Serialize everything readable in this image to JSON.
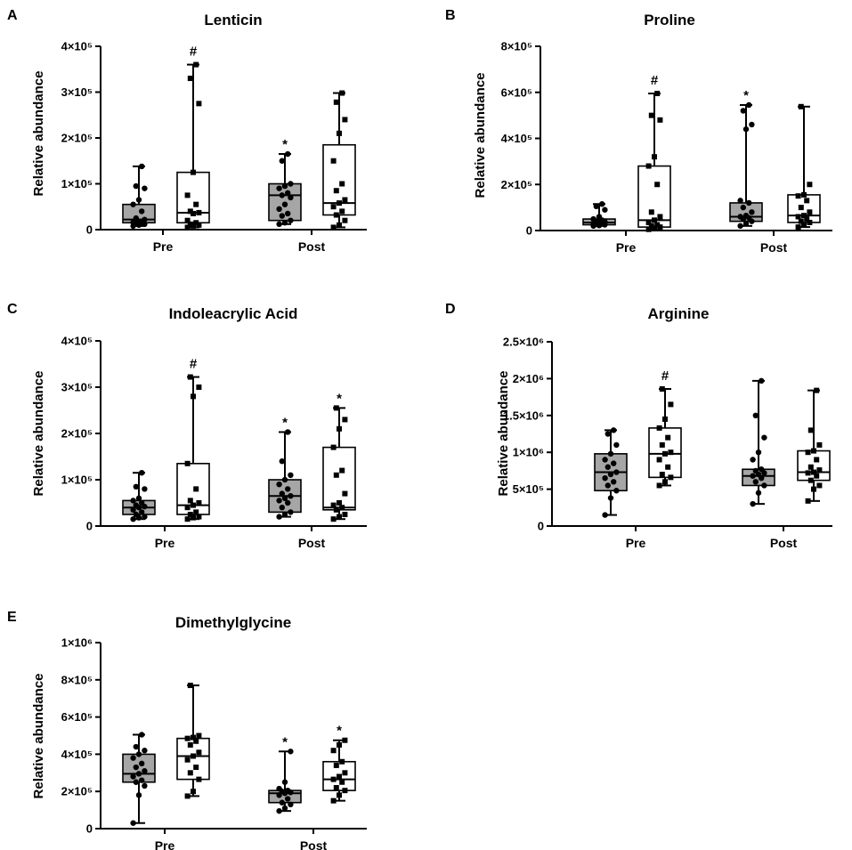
{
  "figure": {
    "panels": "A-E"
  },
  "chart_data": [
    {
      "type": "box",
      "panel": "A",
      "title": "Lenticin",
      "ylabel": "Relative abundance",
      "ylim": [
        0,
        400000
      ],
      "yticks": [
        {
          "value": 0,
          "label": "0"
        },
        {
          "value": 100000,
          "label": "1×10⁵"
        },
        {
          "value": 200000,
          "label": "2×10⁵"
        },
        {
          "value": 300000,
          "label": "3×10⁵"
        },
        {
          "value": 400000,
          "label": "4×10⁵"
        }
      ],
      "categories": [
        "Pre",
        "Post"
      ],
      "boxes": [
        {
          "group": "Pre",
          "fill": "#a6a6a6",
          "marker": "circle",
          "min": 8000,
          "q1": 15000,
          "median": 22000,
          "q3": 55000,
          "max": 138000,
          "points": [
            8000,
            10000,
            12000,
            14000,
            15000,
            16000,
            18000,
            22000,
            25000,
            40000,
            55000,
            65000,
            90000,
            95000,
            138000
          ],
          "annotation": ""
        },
        {
          "group": "Pre",
          "fill": "#ffffff",
          "marker": "square",
          "min": 5000,
          "q1": 15000,
          "median": 37000,
          "q3": 125000,
          "max": 360000,
          "points": [
            5000,
            8000,
            10000,
            12000,
            15000,
            20000,
            35000,
            37000,
            40000,
            55000,
            75000,
            125000,
            275000,
            330000,
            360000
          ],
          "annotation": "#"
        },
        {
          "group": "Post",
          "fill": "#a6a6a6",
          "marker": "circle",
          "min": 12000,
          "q1": 20000,
          "median": 75000,
          "q3": 100000,
          "max": 165000,
          "points": [
            12000,
            15000,
            20000,
            30000,
            35000,
            45000,
            55000,
            70000,
            75000,
            80000,
            90000,
            95000,
            100000,
            150000,
            165000
          ],
          "annotation": "*"
        },
        {
          "group": "Post",
          "fill": "#ffffff",
          "marker": "square",
          "min": 5000,
          "q1": 32000,
          "median": 58000,
          "q3": 185000,
          "max": 298000,
          "points": [
            5000,
            10000,
            20000,
            32000,
            40000,
            50000,
            58000,
            65000,
            85000,
            100000,
            150000,
            210000,
            240000,
            278000,
            298000
          ],
          "annotation": ""
        }
      ]
    },
    {
      "type": "box",
      "panel": "B",
      "title": "Proline",
      "ylabel": "Relative abundance",
      "ylim": [
        0,
        800000
      ],
      "yticks": [
        {
          "value": 0,
          "label": "0"
        },
        {
          "value": 200000,
          "label": "2×10⁵"
        },
        {
          "value": 400000,
          "label": "4×10⁵"
        },
        {
          "value": 600000,
          "label": "6×10⁵"
        },
        {
          "value": 800000,
          "label": "8×10⁵"
        }
      ],
      "categories": [
        "Pre",
        "Post"
      ],
      "boxes": [
        {
          "group": "Pre",
          "fill": "#a6a6a6",
          "marker": "circle",
          "min": 20000,
          "q1": 25000,
          "median": 35000,
          "q3": 50000,
          "max": 115000,
          "points": [
            20000,
            22000,
            25000,
            28000,
            30000,
            32000,
            35000,
            38000,
            40000,
            45000,
            50000,
            60000,
            90000,
            105000,
            115000
          ],
          "annotation": ""
        },
        {
          "group": "Pre",
          "fill": "#ffffff",
          "marker": "square",
          "min": 5000,
          "q1": 15000,
          "median": 45000,
          "q3": 280000,
          "max": 595000,
          "points": [
            5000,
            10000,
            15000,
            20000,
            25000,
            35000,
            45000,
            60000,
            80000,
            200000,
            280000,
            320000,
            480000,
            500000,
            595000
          ],
          "annotation": "#"
        },
        {
          "group": "Post",
          "fill": "#a6a6a6",
          "marker": "circle",
          "min": 20000,
          "q1": 40000,
          "median": 60000,
          "q3": 120000,
          "max": 545000,
          "points": [
            20000,
            30000,
            40000,
            50000,
            55000,
            60000,
            65000,
            80000,
            100000,
            120000,
            130000,
            440000,
            460000,
            520000,
            545000
          ],
          "annotation": "*"
        },
        {
          "group": "Post",
          "fill": "#ffffff",
          "marker": "square",
          "min": 15000,
          "q1": 35000,
          "median": 65000,
          "q3": 155000,
          "max": 538000,
          "points": [
            15000,
            25000,
            35000,
            40000,
            50000,
            60000,
            65000,
            80000,
            100000,
            130000,
            150000,
            155000,
            200000,
            538000
          ],
          "annotation": ""
        }
      ]
    },
    {
      "type": "box",
      "panel": "C",
      "title": "Indoleacrylic Acid",
      "ylabel": "Relative abundance",
      "ylim": [
        0,
        400000
      ],
      "yticks": [
        {
          "value": 0,
          "label": "0"
        },
        {
          "value": 100000,
          "label": "1×10⁵"
        },
        {
          "value": 200000,
          "label": "2×10⁵"
        },
        {
          "value": 300000,
          "label": "3×10⁵"
        },
        {
          "value": 400000,
          "label": "4×10⁵"
        }
      ],
      "categories": [
        "Pre",
        "Post"
      ],
      "boxes": [
        {
          "group": "Pre",
          "fill": "#a6a6a6",
          "marker": "circle",
          "min": 15000,
          "q1": 25000,
          "median": 40000,
          "q3": 55000,
          "max": 115000,
          "points": [
            15000,
            18000,
            20000,
            25000,
            30000,
            35000,
            40000,
            42000,
            45000,
            50000,
            55000,
            60000,
            80000,
            85000,
            115000
          ],
          "annotation": ""
        },
        {
          "group": "Pre",
          "fill": "#ffffff",
          "marker": "square",
          "min": 15000,
          "q1": 25000,
          "median": 45000,
          "q3": 135000,
          "max": 322000,
          "points": [
            15000,
            18000,
            20000,
            25000,
            30000,
            40000,
            45000,
            50000,
            55000,
            80000,
            135000,
            280000,
            300000,
            322000
          ],
          "annotation": "#"
        },
        {
          "group": "Post",
          "fill": "#a6a6a6",
          "marker": "circle",
          "min": 20000,
          "q1": 30000,
          "median": 65000,
          "q3": 100000,
          "max": 203000,
          "points": [
            20000,
            25000,
            30000,
            40000,
            50000,
            55000,
            60000,
            65000,
            70000,
            80000,
            90000,
            100000,
            110000,
            140000,
            203000
          ],
          "annotation": "*"
        },
        {
          "group": "Post",
          "fill": "#ffffff",
          "marker": "square",
          "min": 15000,
          "q1": 35000,
          "median": 40000,
          "q3": 170000,
          "max": 255000,
          "points": [
            15000,
            20000,
            25000,
            35000,
            40000,
            45000,
            50000,
            70000,
            110000,
            120000,
            170000,
            210000,
            230000,
            255000
          ],
          "annotation": "*"
        }
      ]
    },
    {
      "type": "box",
      "panel": "D",
      "title": "Arginine",
      "ylabel": "Relative abundance",
      "ylim": [
        0,
        2500000
      ],
      "yticks": [
        {
          "value": 0,
          "label": "0"
        },
        {
          "value": 500000,
          "label": "5×10⁵"
        },
        {
          "value": 1000000,
          "label": "1×10⁶"
        },
        {
          "value": 1500000,
          "label": "1.5×10⁶"
        },
        {
          "value": 2000000,
          "label": "2×10⁶"
        },
        {
          "value": 2500000,
          "label": "2.5×10⁶"
        }
      ],
      "categories": [
        "Pre",
        "Post"
      ],
      "boxes": [
        {
          "group": "Pre",
          "fill": "#a6a6a6",
          "marker": "circle",
          "min": 150000,
          "q1": 480000,
          "median": 730000,
          "q3": 980000,
          "max": 1300000,
          "points": [
            150000,
            380000,
            480000,
            550000,
            600000,
            650000,
            700000,
            730000,
            800000,
            850000,
            900000,
            980000,
            1100000,
            1250000,
            1300000
          ],
          "annotation": ""
        },
        {
          "group": "Pre",
          "fill": "#ffffff",
          "marker": "square",
          "min": 550000,
          "q1": 660000,
          "median": 980000,
          "q3": 1330000,
          "max": 1860000,
          "points": [
            550000,
            600000,
            660000,
            700000,
            800000,
            900000,
            980000,
            1000000,
            1100000,
            1200000,
            1330000,
            1450000,
            1650000,
            1860000
          ],
          "annotation": "#"
        },
        {
          "group": "Post",
          "fill": "#a6a6a6",
          "marker": "circle",
          "min": 300000,
          "q1": 550000,
          "median": 680000,
          "q3": 770000,
          "max": 1970000,
          "points": [
            300000,
            450000,
            550000,
            600000,
            650000,
            680000,
            700000,
            720000,
            750000,
            770000,
            900000,
            1000000,
            1200000,
            1500000,
            1970000
          ],
          "annotation": ""
        },
        {
          "group": "Post",
          "fill": "#ffffff",
          "marker": "square",
          "min": 340000,
          "q1": 620000,
          "median": 730000,
          "q3": 1020000,
          "max": 1840000,
          "points": [
            340000,
            500000,
            550000,
            620000,
            680000,
            720000,
            730000,
            760000,
            800000,
            900000,
            1000000,
            1020000,
            1100000,
            1300000,
            1840000
          ],
          "annotation": ""
        }
      ]
    },
    {
      "type": "box",
      "panel": "E",
      "title": "Dimethylglycine",
      "ylabel": "Relative abundance",
      "ylim": [
        0,
        1000000
      ],
      "yticks": [
        {
          "value": 0,
          "label": "0"
        },
        {
          "value": 200000,
          "label": "2×10⁵"
        },
        {
          "value": 400000,
          "label": "4×10⁵"
        },
        {
          "value": 600000,
          "label": "6×10⁵"
        },
        {
          "value": 800000,
          "label": "8×10⁵"
        },
        {
          "value": 1000000,
          "label": "1×10⁶"
        }
      ],
      "categories": [
        "Pre",
        "Post"
      ],
      "boxes": [
        {
          "group": "Pre",
          "fill": "#a6a6a6",
          "marker": "circle",
          "min": 30000,
          "q1": 250000,
          "median": 295000,
          "q3": 400000,
          "max": 505000,
          "points": [
            30000,
            180000,
            230000,
            250000,
            260000,
            280000,
            295000,
            310000,
            330000,
            350000,
            380000,
            400000,
            420000,
            440000,
            505000
          ],
          "annotation": ""
        },
        {
          "group": "Pre",
          "fill": "#ffffff",
          "marker": "square",
          "min": 175000,
          "q1": 265000,
          "median": 390000,
          "q3": 485000,
          "max": 770000,
          "points": [
            175000,
            200000,
            265000,
            300000,
            330000,
            370000,
            390000,
            410000,
            450000,
            470000,
            485000,
            490000,
            500000,
            770000
          ],
          "annotation": ""
        },
        {
          "group": "Post",
          "fill": "#a6a6a6",
          "marker": "circle",
          "min": 95000,
          "q1": 140000,
          "median": 190000,
          "q3": 205000,
          "max": 415000,
          "points": [
            95000,
            110000,
            130000,
            140000,
            160000,
            180000,
            190000,
            195000,
            200000,
            205000,
            215000,
            250000,
            415000
          ],
          "annotation": "*"
        },
        {
          "group": "Post",
          "fill": "#ffffff",
          "marker": "square",
          "min": 150000,
          "q1": 205000,
          "median": 265000,
          "q3": 360000,
          "max": 475000,
          "points": [
            150000,
            180000,
            205000,
            220000,
            250000,
            265000,
            280000,
            300000,
            340000,
            360000,
            420000,
            450000,
            475000
          ],
          "annotation": "*"
        }
      ]
    }
  ]
}
